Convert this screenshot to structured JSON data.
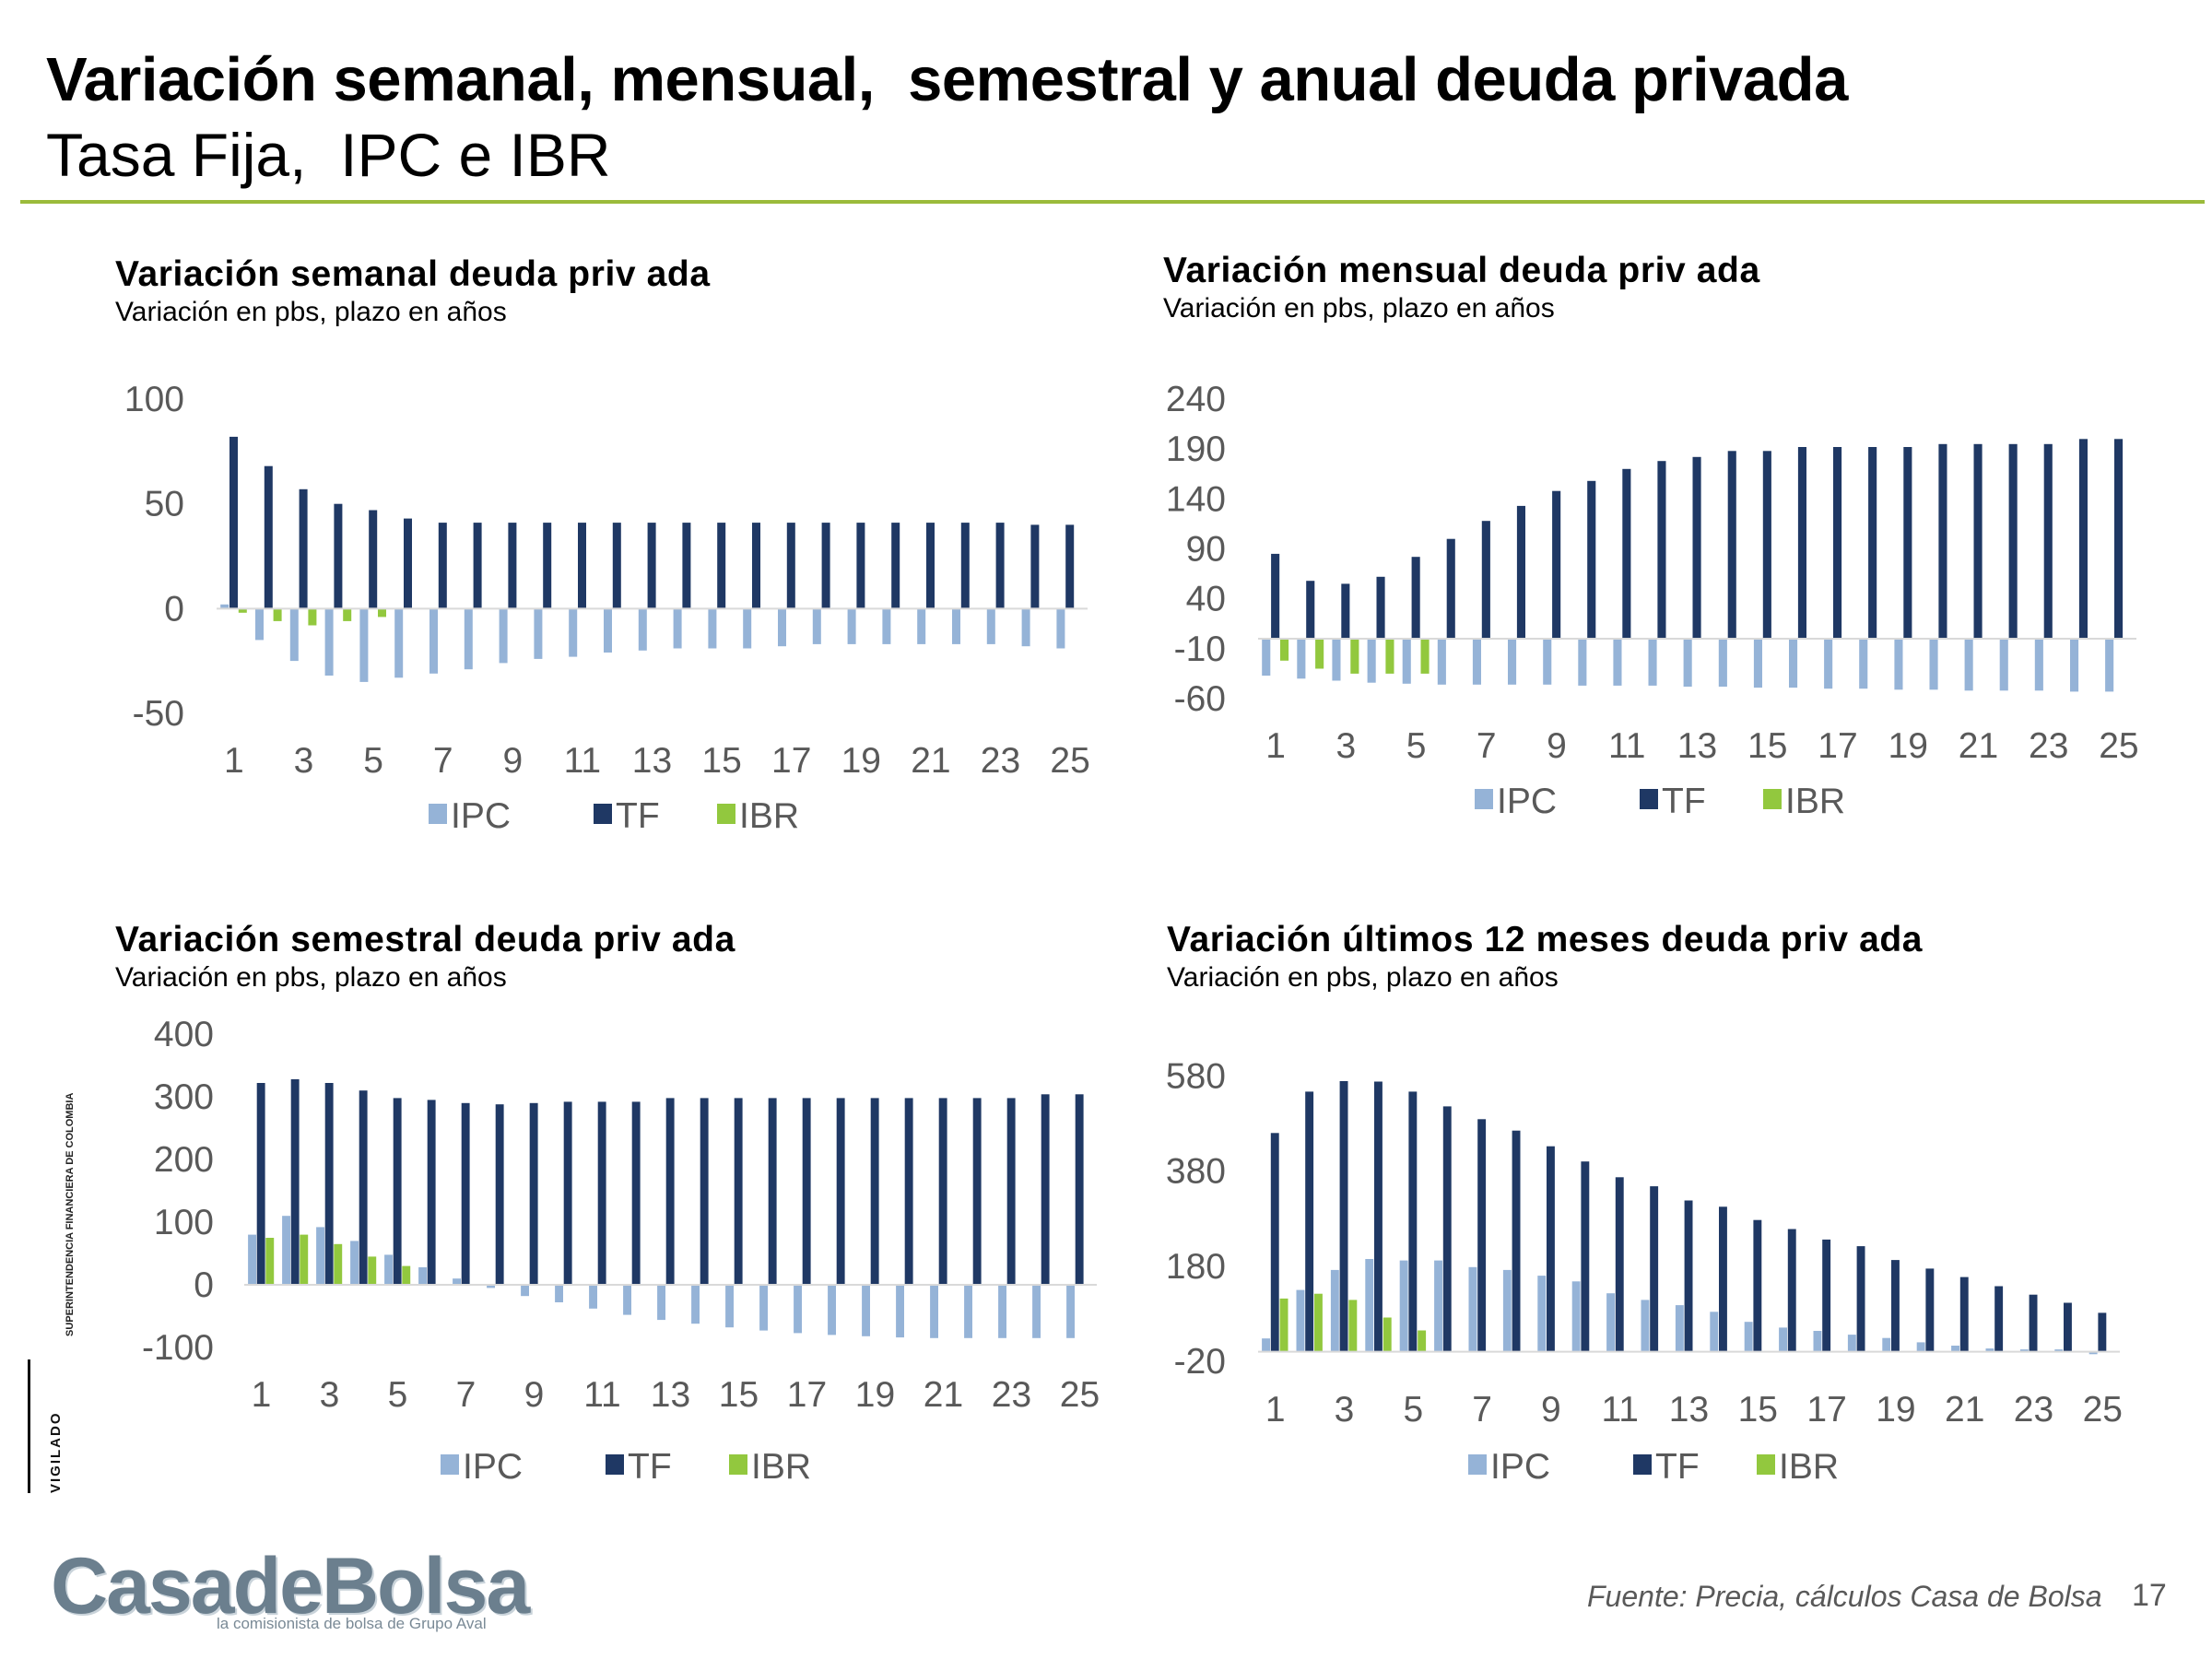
{
  "header": {
    "title": "Variación semanal, mensual,  semestral y anual deuda privada",
    "subtitle": "Tasa Fija,  IPC e IBR"
  },
  "colors": {
    "IPC": "#95b3d7",
    "TF": "#1f3864",
    "IBR": "#92c83e",
    "rule": "#9bbb3b"
  },
  "chart_data": [
    {
      "type": "bar",
      "title": "Variación semanal deuda priv ada",
      "subtitle": "Variación en pbs, plazo en años",
      "x": [
        1,
        2,
        3,
        4,
        5,
        6,
        7,
        8,
        9,
        10,
        11,
        12,
        13,
        14,
        15,
        16,
        17,
        18,
        19,
        20,
        21,
        22,
        23,
        24,
        25
      ],
      "xticks": [
        "1",
        "3",
        "5",
        "7",
        "9",
        "11",
        "13",
        "15",
        "17",
        "19",
        "21",
        "23",
        "25"
      ],
      "yticks": [
        "100",
        "50",
        "0",
        "-50"
      ],
      "ylim": [
        -50,
        100
      ],
      "legend": [
        "IPC",
        "TF",
        "IBR"
      ],
      "legend_position": "bottom",
      "series": [
        {
          "name": "IPC",
          "values": [
            2,
            -15,
            -25,
            -32,
            -35,
            -33,
            -31,
            -29,
            -26,
            -24,
            -23,
            -21,
            -20,
            -19,
            -19,
            -19,
            -18,
            -17,
            -17,
            -17,
            -17,
            -17,
            -17,
            -18,
            -19
          ]
        },
        {
          "name": "TF",
          "values": [
            82,
            68,
            57,
            50,
            47,
            43,
            41,
            41,
            41,
            41,
            41,
            41,
            41,
            41,
            41,
            41,
            41,
            41,
            41,
            41,
            41,
            41,
            41,
            40,
            40
          ]
        },
        {
          "name": "IBR",
          "values": [
            -2,
            -6,
            -8,
            -6,
            -4,
            null,
            null,
            null,
            null,
            null,
            null,
            null,
            null,
            null,
            null,
            null,
            null,
            null,
            null,
            null,
            null,
            null,
            null,
            null,
            null
          ]
        }
      ]
    },
    {
      "type": "bar",
      "title": "Variación mensual deuda priv ada",
      "subtitle": "Variación en pbs, plazo en años",
      "x": [
        1,
        2,
        3,
        4,
        5,
        6,
        7,
        8,
        9,
        10,
        11,
        12,
        13,
        14,
        15,
        16,
        17,
        18,
        19,
        20,
        21,
        22,
        23,
        24,
        25
      ],
      "xticks": [
        "1",
        "3",
        "5",
        "7",
        "9",
        "11",
        "13",
        "15",
        "17",
        "19",
        "21",
        "23",
        "25"
      ],
      "yticks": [
        "240",
        "190",
        "140",
        "90",
        "40",
        "-10",
        "-60"
      ],
      "ylim": [
        -60,
        240
      ],
      "legend": [
        "IPC",
        "TF",
        "IBR"
      ],
      "legend_position": "bottom",
      "series": [
        {
          "name": "IPC",
          "values": [
            -37,
            -40,
            -42,
            -44,
            -45,
            -46,
            -46,
            -46,
            -46,
            -47,
            -47,
            -47,
            -48,
            -48,
            -49,
            -49,
            -50,
            -50,
            -51,
            -51,
            -52,
            -52,
            -52,
            -53,
            -53
          ]
        },
        {
          "name": "TF",
          "values": [
            85,
            58,
            55,
            62,
            82,
            100,
            118,
            133,
            148,
            158,
            170,
            178,
            182,
            188,
            188,
            192,
            192,
            192,
            192,
            195,
            195,
            195,
            195,
            200,
            200
          ]
        },
        {
          "name": "IBR",
          "values": [
            -22,
            -30,
            -35,
            -35,
            -35,
            null,
            null,
            null,
            null,
            null,
            null,
            null,
            null,
            null,
            null,
            null,
            null,
            null,
            null,
            null,
            null,
            null,
            null,
            null,
            null
          ]
        }
      ]
    },
    {
      "type": "bar",
      "title": "Variación semestral deuda priv ada",
      "subtitle": "Variación en pbs, plazo en años",
      "x": [
        1,
        2,
        3,
        4,
        5,
        6,
        7,
        8,
        9,
        10,
        11,
        12,
        13,
        14,
        15,
        16,
        17,
        18,
        19,
        20,
        21,
        22,
        23,
        24,
        25
      ],
      "xticks": [
        "1",
        "3",
        "5",
        "7",
        "9",
        "11",
        "13",
        "15",
        "17",
        "19",
        "21",
        "23",
        "25"
      ],
      "yticks": [
        "400",
        "300",
        "200",
        "100",
        "0",
        "-100"
      ],
      "ylim": [
        -100,
        400
      ],
      "legend": [
        "IPC",
        "TF",
        "IBR"
      ],
      "legend_position": "bottom",
      "series": [
        {
          "name": "IPC",
          "values": [
            80,
            110,
            92,
            70,
            48,
            28,
            10,
            -5,
            -18,
            -28,
            -38,
            -48,
            -56,
            -62,
            -68,
            -73,
            -77,
            -80,
            -82,
            -84,
            -85,
            -85,
            -85,
            -85,
            -85
          ]
        },
        {
          "name": "TF",
          "values": [
            322,
            328,
            322,
            310,
            298,
            295,
            290,
            288,
            290,
            292,
            292,
            292,
            298,
            298,
            298,
            298,
            298,
            298,
            298,
            298,
            298,
            298,
            298,
            304,
            304
          ]
        },
        {
          "name": "IBR",
          "values": [
            75,
            80,
            65,
            45,
            30,
            null,
            null,
            null,
            null,
            null,
            null,
            null,
            null,
            null,
            null,
            null,
            null,
            null,
            null,
            null,
            null,
            null,
            null,
            null,
            null
          ]
        }
      ]
    },
    {
      "type": "bar",
      "title": "Variación últimos 12 meses deuda priv ada",
      "subtitle": "Variación en pbs, plazo en años",
      "x": [
        1,
        2,
        3,
        4,
        5,
        6,
        7,
        8,
        9,
        10,
        11,
        12,
        13,
        14,
        15,
        16,
        17,
        18,
        19,
        20,
        21,
        22,
        23,
        24,
        25
      ],
      "xticks": [
        "1",
        "3",
        "5",
        "7",
        "9",
        "11",
        "13",
        "15",
        "17",
        "19",
        "21",
        "23",
        "25"
      ],
      "yticks": [
        "580",
        "380",
        "180",
        "-20"
      ],
      "ylim": [
        -20,
        600
      ],
      "legend": [
        "IPC",
        "TF",
        "IBR"
      ],
      "legend_position": "bottom",
      "series": [
        {
          "name": "IPC",
          "values": [
            28,
            130,
            172,
            195,
            192,
            192,
            178,
            172,
            160,
            148,
            123,
            109,
            98,
            84,
            63,
            51,
            44,
            36,
            29,
            20,
            13,
            7,
            5,
            5,
            -5
          ]
        },
        {
          "name": "TF",
          "values": [
            460,
            547,
            569,
            568,
            547,
            516,
            489,
            465,
            432,
            400,
            367,
            348,
            318,
            305,
            277,
            258,
            236,
            222,
            193,
            175,
            157,
            138,
            120,
            103,
            82
          ]
        },
        {
          "name": "IBR",
          "values": [
            112,
            122,
            109,
            72,
            45,
            null,
            null,
            null,
            null,
            null,
            null,
            null,
            null,
            null,
            null,
            null,
            null,
            null,
            null,
            null,
            null,
            null,
            null,
            null,
            null
          ]
        }
      ]
    }
  ],
  "footer": {
    "source": "Fuente: Precia, cálculos Casa de Bolsa",
    "page_number": "17",
    "logo_text": "CasadeBolsa",
    "logo_tagline": "la comisionista de bolsa de Grupo Aval",
    "vigilado": "VIGILADO",
    "superfin": "SUPERINTENDENCIA FINANCIERA DE COLOMBIA"
  }
}
